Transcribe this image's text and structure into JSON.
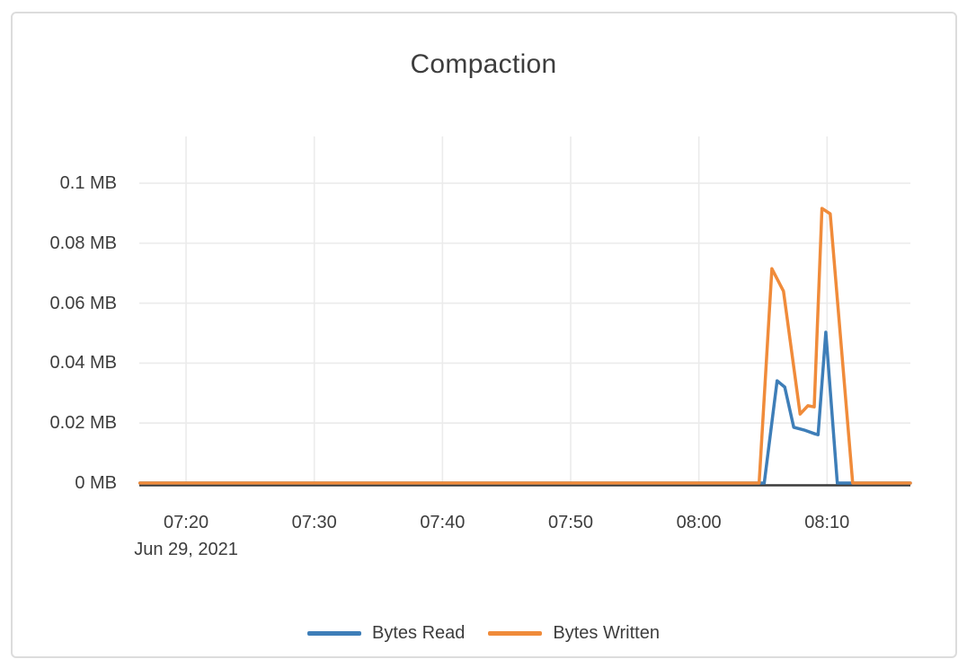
{
  "chart_data": {
    "type": "line",
    "title": "Compaction",
    "x_axis": {
      "tick_labels": [
        "07:20",
        "07:30",
        "07:40",
        "07:50",
        "08:00",
        "08:10"
      ],
      "tick_minutes": [
        20,
        30,
        40,
        50,
        60,
        70
      ],
      "date_label": "Jun 29, 2021",
      "domain_minutes": [
        16.35,
        76.5
      ],
      "unit": "time of day (HH:MM) on Jun 29, 2021; numeric x below = minutes after 07:00"
    },
    "y_axis": {
      "tick_labels": [
        "0.1 MB",
        "0.08 MB",
        "0.06 MB",
        "0.04 MB",
        "0.02 MB",
        "0 MB"
      ],
      "tick_values": [
        0.1,
        0.08,
        0.06,
        0.04,
        0.02,
        0
      ],
      "range": [
        0,
        0.1156
      ],
      "unit": "MB"
    },
    "series": [
      {
        "name": "Bytes Read",
        "color": "#3e7eb8",
        "points": [
          [
            16.4,
            0
          ],
          [
            65.1,
            0
          ],
          [
            66.1,
            0.0341
          ],
          [
            66.7,
            0.032
          ],
          [
            67.4,
            0.0186
          ],
          [
            68.2,
            0.0177
          ],
          [
            69.05,
            0.0164
          ],
          [
            69.3,
            0.0161
          ],
          [
            69.9,
            0.0503
          ],
          [
            70.8,
            0
          ],
          [
            76.5,
            0
          ]
        ]
      },
      {
        "name": "Bytes Written",
        "color": "#f08b3a",
        "points": [
          [
            16.4,
            0
          ],
          [
            64.7,
            0
          ],
          [
            65.7,
            0.0715
          ],
          [
            66.6,
            0.064
          ],
          [
            67.9,
            0.023
          ],
          [
            68.5,
            0.0258
          ],
          [
            69.0,
            0.0254
          ],
          [
            69.6,
            0.0916
          ],
          [
            70.25,
            0.0898
          ],
          [
            72.0,
            0
          ],
          [
            76.5,
            0
          ]
        ]
      }
    ],
    "legend_position": "bottom",
    "grid": true,
    "colors": {
      "grid": "#ebebeb",
      "zero_line": "#3b3b3b",
      "text": "#3d3d3d",
      "card_border": "#dcdcdc",
      "background": "#ffffff"
    }
  }
}
